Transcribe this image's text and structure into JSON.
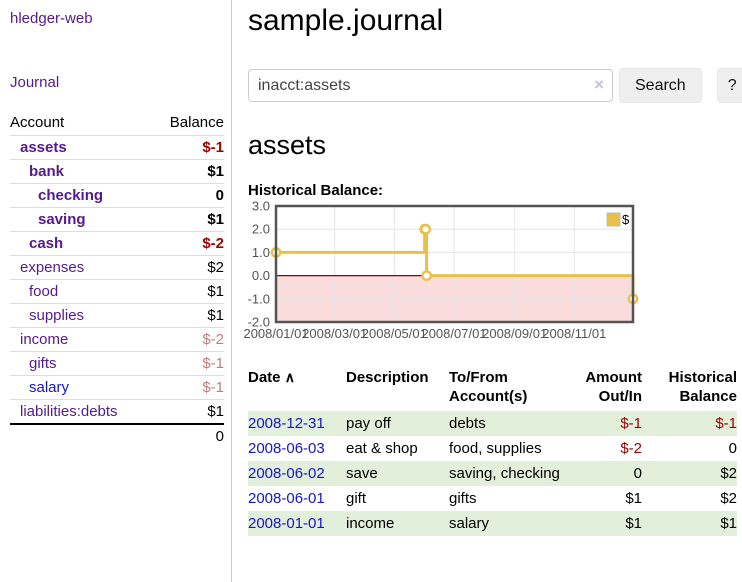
{
  "colors": {
    "link_purple": "#551a8b",
    "link_blue": "#1515cc",
    "negative_strong": "#a40000",
    "negative_faded": "#c07c7c",
    "row_green": "#e2efdb",
    "chart_line_gold": "#e9c04a"
  },
  "sidebar": {
    "app_title": "hledger-web",
    "nav": {
      "journal": "Journal"
    },
    "table_headers": {
      "account": "Account",
      "balance": "Balance"
    },
    "accounts": [
      {
        "name": "assets",
        "balance": "$-1",
        "depth": 0
      },
      {
        "name": "bank",
        "balance": "$1",
        "depth": 1
      },
      {
        "name": "checking",
        "balance": "0",
        "depth": 2
      },
      {
        "name": "saving",
        "balance": "$1",
        "depth": 2
      },
      {
        "name": "cash",
        "balance": "$-2",
        "depth": 1
      },
      {
        "name": "expenses",
        "balance": "$2",
        "depth": 0
      },
      {
        "name": "food",
        "balance": "$1",
        "depth": 1
      },
      {
        "name": "supplies",
        "balance": "$1",
        "depth": 1
      },
      {
        "name": "income",
        "balance": "$-2",
        "depth": 0
      },
      {
        "name": "gifts",
        "balance": "$-1",
        "depth": 1
      },
      {
        "name": "salary",
        "balance": "$-1",
        "depth": 1
      },
      {
        "name": "liabilities:debts",
        "balance": "$1",
        "depth": 0
      }
    ],
    "total": "0"
  },
  "header": {
    "title": "sample.journal"
  },
  "search": {
    "value": "inacct:assets",
    "clear_icon": "×",
    "button_label": "Search",
    "help_label": "?"
  },
  "account_page": {
    "title": "assets",
    "chart_label": "Historical Balance:"
  },
  "chart_data": {
    "type": "line",
    "step": true,
    "title": "Historical Balance:",
    "series": [
      {
        "name": "$",
        "color": "#e9c04a",
        "points": [
          {
            "date": "2008-01-01",
            "value": 1
          },
          {
            "date": "2008-06-01",
            "value": 2
          },
          {
            "date": "2008-06-02",
            "value": 2
          },
          {
            "date": "2008-06-03",
            "value": 0
          },
          {
            "date": "2008-12-31",
            "value": -1
          }
        ]
      }
    ],
    "x_range": [
      "2008-01-01",
      "2008-12-31"
    ],
    "x_ticks": [
      "2008/01/01",
      "2008/03/01",
      "2008/05/01",
      "2008/07/01",
      "2008/09/01",
      "2008/11/01"
    ],
    "y_ticks": [
      3.0,
      2.0,
      1.0,
      0.0,
      -1.0,
      -2.0
    ],
    "ylim": [
      -2,
      3
    ],
    "grid": true,
    "legend": {
      "label": "$",
      "position": "top-right"
    },
    "negative_region_color": "#fbdcdc",
    "zero_line_color": "#8b0000"
  },
  "register": {
    "headers": {
      "date": "Date",
      "sort_indicator": "∧",
      "description": "Description",
      "accounts_l1": "To/From",
      "accounts_l2": "Account(s)",
      "amount_l1": "Amount",
      "amount_l2": "Out/In",
      "balance_l1": "Historical",
      "balance_l2": "Balance"
    },
    "rows": [
      {
        "date": "2008-12-31",
        "description": "pay off",
        "accounts": "debts",
        "amount": "$-1",
        "balance": "$-1"
      },
      {
        "date": "2008-06-03",
        "description": "eat & shop",
        "accounts": "food, supplies",
        "amount": "$-2",
        "balance": "0"
      },
      {
        "date": "2008-06-02",
        "description": "save",
        "accounts": "saving, checking",
        "amount": "0",
        "balance": "$2"
      },
      {
        "date": "2008-06-01",
        "description": "gift",
        "accounts": "gifts",
        "amount": "$1",
        "balance": "$2"
      },
      {
        "date": "2008-01-01",
        "description": "income",
        "accounts": "salary",
        "amount": "$1",
        "balance": "$1"
      }
    ]
  }
}
